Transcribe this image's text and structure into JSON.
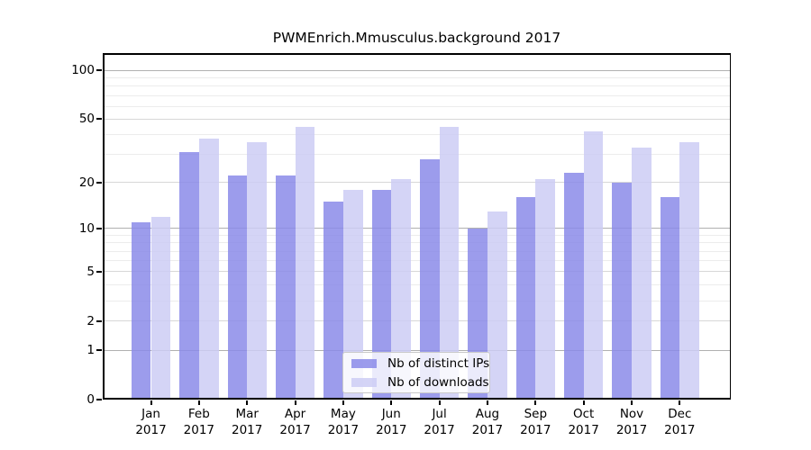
{
  "chart_data": {
    "type": "bar",
    "title": "PWMEnrich.Mmusculus.background 2017",
    "categories": [
      "Jan",
      "Feb",
      "Mar",
      "Apr",
      "May",
      "Jun",
      "Jul",
      "Aug",
      "Sep",
      "Oct",
      "Nov",
      "Dec"
    ],
    "x_tick_year": "2017",
    "series": [
      {
        "name": "Nb of distinct IPs",
        "color": "#8b8be9d9",
        "values": [
          11,
          31,
          22,
          22,
          15,
          18,
          28,
          10,
          16,
          23,
          20,
          16
        ]
      },
      {
        "name": "Nb of downloads",
        "color": "#cdcdf4d9",
        "values": [
          12,
          38,
          36,
          45,
          18,
          21,
          45,
          13,
          21,
          42,
          33,
          36
        ]
      }
    ],
    "y_axis": {
      "scale": "log1p",
      "tick_labels": [
        "100",
        "50",
        "20",
        "10",
        "5",
        "2",
        "1",
        "0"
      ],
      "tick_values": [
        100,
        50,
        20,
        10,
        5,
        2,
        1,
        0
      ],
      "range_top": 127.6,
      "decade_gridlines": [
        1,
        10,
        100
      ],
      "mid_gridlines": [
        2,
        5,
        20,
        50
      ],
      "minor_gridlines": [
        3,
        4,
        6,
        7,
        8,
        9,
        30,
        40,
        60,
        70,
        80,
        90
      ]
    },
    "legend": {
      "entries": [
        "Nb of distinct IPs",
        "Nb of downloads"
      ],
      "position": "lower center"
    },
    "grid": true,
    "xlabel": "",
    "ylabel": ""
  },
  "colors": {
    "background": "#ffffff",
    "axis": "#000000",
    "grid_decade": "#b0b0b0",
    "grid_mid": "#d7d7d7",
    "grid_minor": "#ececec",
    "legend_border": "#c9c9c9"
  }
}
